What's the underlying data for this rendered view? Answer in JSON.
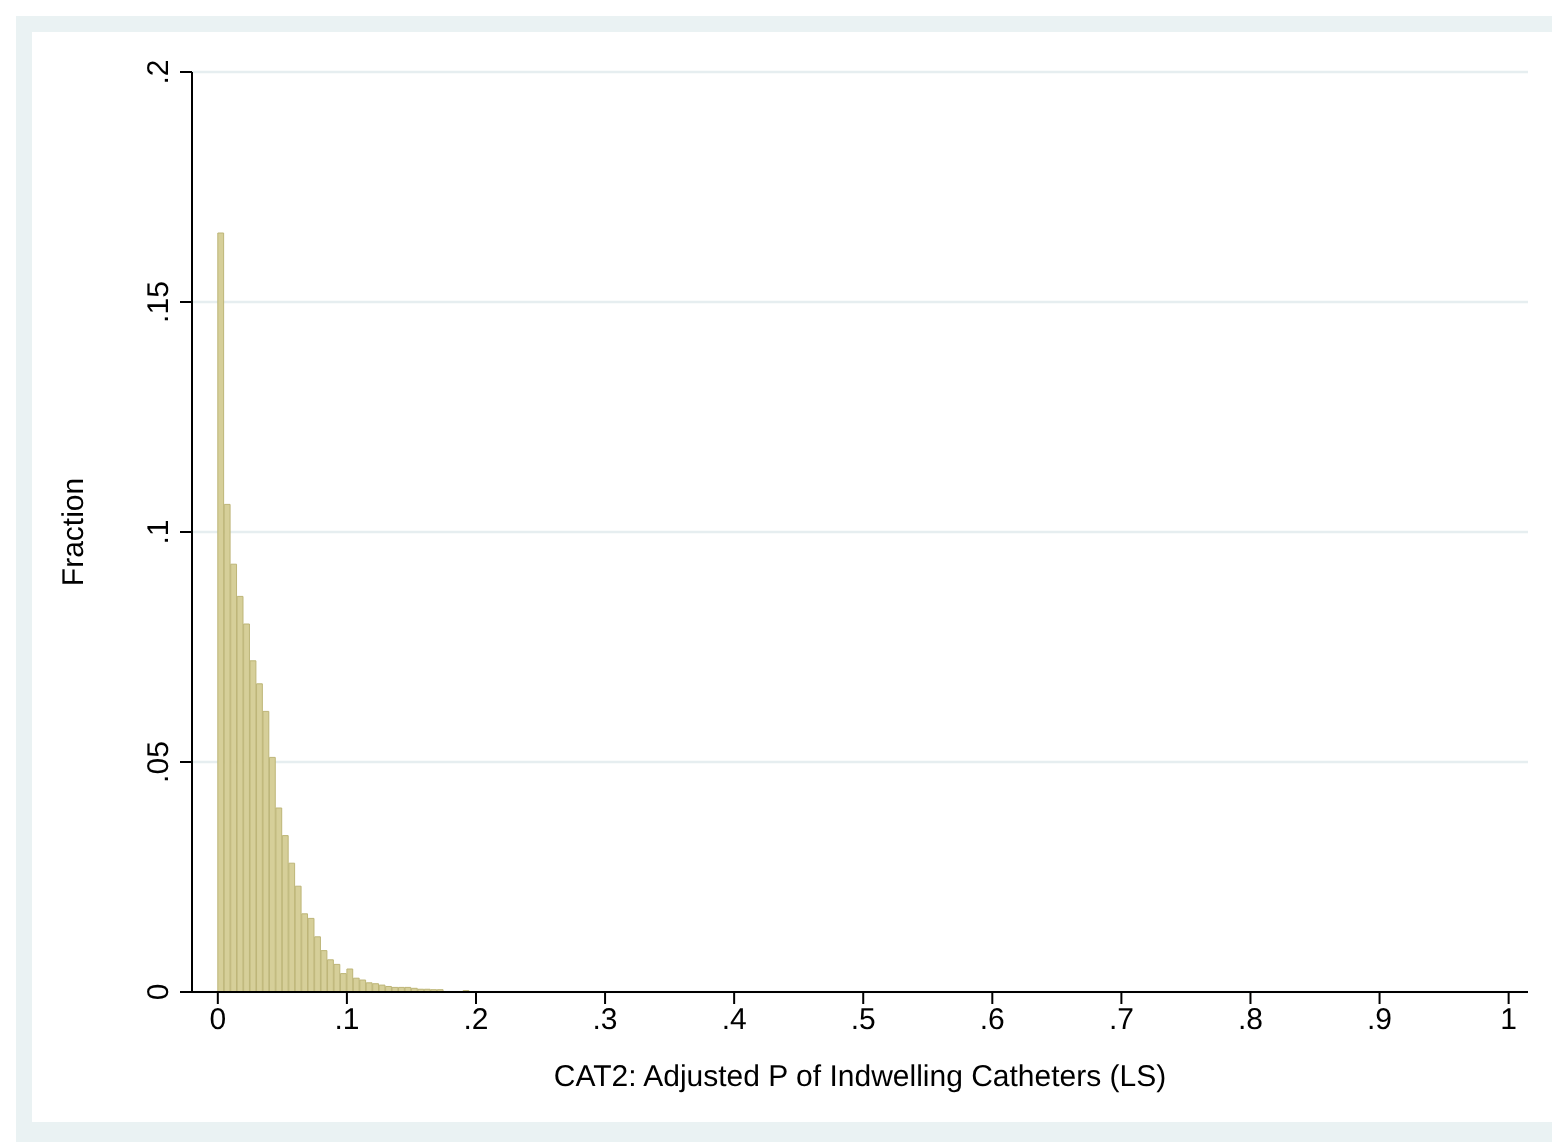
{
  "chart_data": {
    "type": "histogram",
    "xlabel": "CAT2: Adjusted P of Indwelling Catheters (LS)",
    "ylabel": "Fraction",
    "bins": [
      0,
      0.005,
      0.01,
      0.015,
      0.02,
      0.025,
      0.03,
      0.035,
      0.04,
      0.045,
      0.05,
      0.055,
      0.06,
      0.065,
      0.07,
      0.075,
      0.08,
      0.085,
      0.09,
      0.095,
      0.1,
      0.105,
      0.11,
      0.115,
      0.12,
      0.125,
      0.13,
      0.135,
      0.14,
      0.145,
      0.15,
      0.155,
      0.16,
      0.165,
      0.17,
      0.175,
      0.18,
      0.185,
      0.19,
      0.195,
      0.2
    ],
    "values": [
      0.165,
      0.106,
      0.093,
      0.086,
      0.08,
      0.072,
      0.067,
      0.061,
      0.051,
      0.04,
      0.034,
      0.028,
      0.023,
      0.017,
      0.016,
      0.012,
      0.009,
      0.007,
      0.006,
      0.004,
      0.005,
      0.003,
      0.0026,
      0.002,
      0.0018,
      0.0015,
      0.0012,
      0.001,
      0.001,
      0.001,
      0.0008,
      0.0006,
      0.0006,
      0.0005,
      0.0005,
      null,
      null,
      null,
      0.0003,
      null
    ],
    "color": "#d6cf99",
    "xlim": [
      -0.02,
      1.015
    ],
    "xticks": [
      0,
      {
        "value": 0.1,
        "label": ".1"
      },
      {
        "value": 0.2,
        "label": ".2"
      },
      {
        "value": 0.3,
        "label": ".3"
      },
      {
        "value": 0.4,
        "label": ".4"
      },
      {
        "value": 0.5,
        "label": ".5"
      },
      {
        "value": 0.6,
        "label": ".6"
      },
      {
        "value": 0.7,
        "label": ".7"
      },
      {
        "value": 0.8,
        "label": ".8"
      },
      {
        "value": 0.9,
        "label": ".9"
      },
      1
    ],
    "ylim": [
      0,
      0.2
    ],
    "yticks": [
      0,
      {
        "value": 0.05,
        "label": ".05"
      },
      {
        "value": 0.1,
        "label": ".1"
      },
      {
        "value": 0.15,
        "label": ".15"
      },
      {
        "value": 0.2,
        "label": ".2"
      }
    ],
    "grid": "y",
    "legend": false
  }
}
